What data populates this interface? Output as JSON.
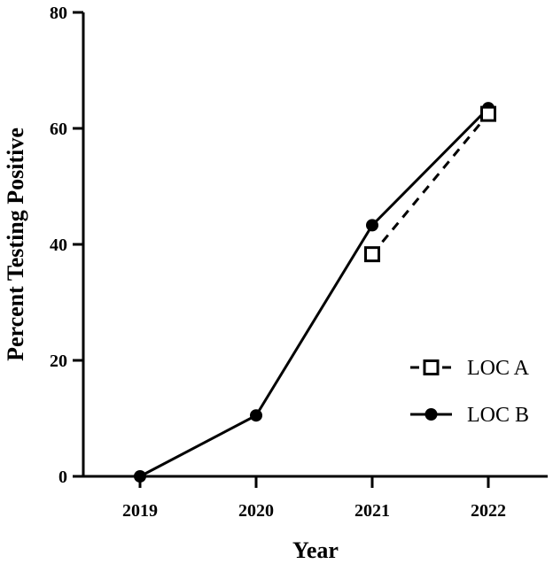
{
  "chart_data": {
    "type": "line",
    "xlabel": "Year",
    "ylabel": "Percent Testing Positive",
    "categories": [
      "2019",
      "2020",
      "2021",
      "2022"
    ],
    "ylim": [
      0,
      80
    ],
    "yticks": [
      0,
      20,
      40,
      60,
      80
    ],
    "grid": false,
    "legend_position": "bottom-right",
    "series": [
      {
        "name": "LOC A",
        "values": [
          null,
          null,
          38.3,
          62.5
        ],
        "line_style": "dashed",
        "marker": "open-square",
        "color": "#000000"
      },
      {
        "name": "LOC B",
        "values": [
          0,
          10.5,
          43.3,
          63.5
        ],
        "line_style": "solid",
        "marker": "filled-circle",
        "color": "#000000"
      }
    ]
  }
}
